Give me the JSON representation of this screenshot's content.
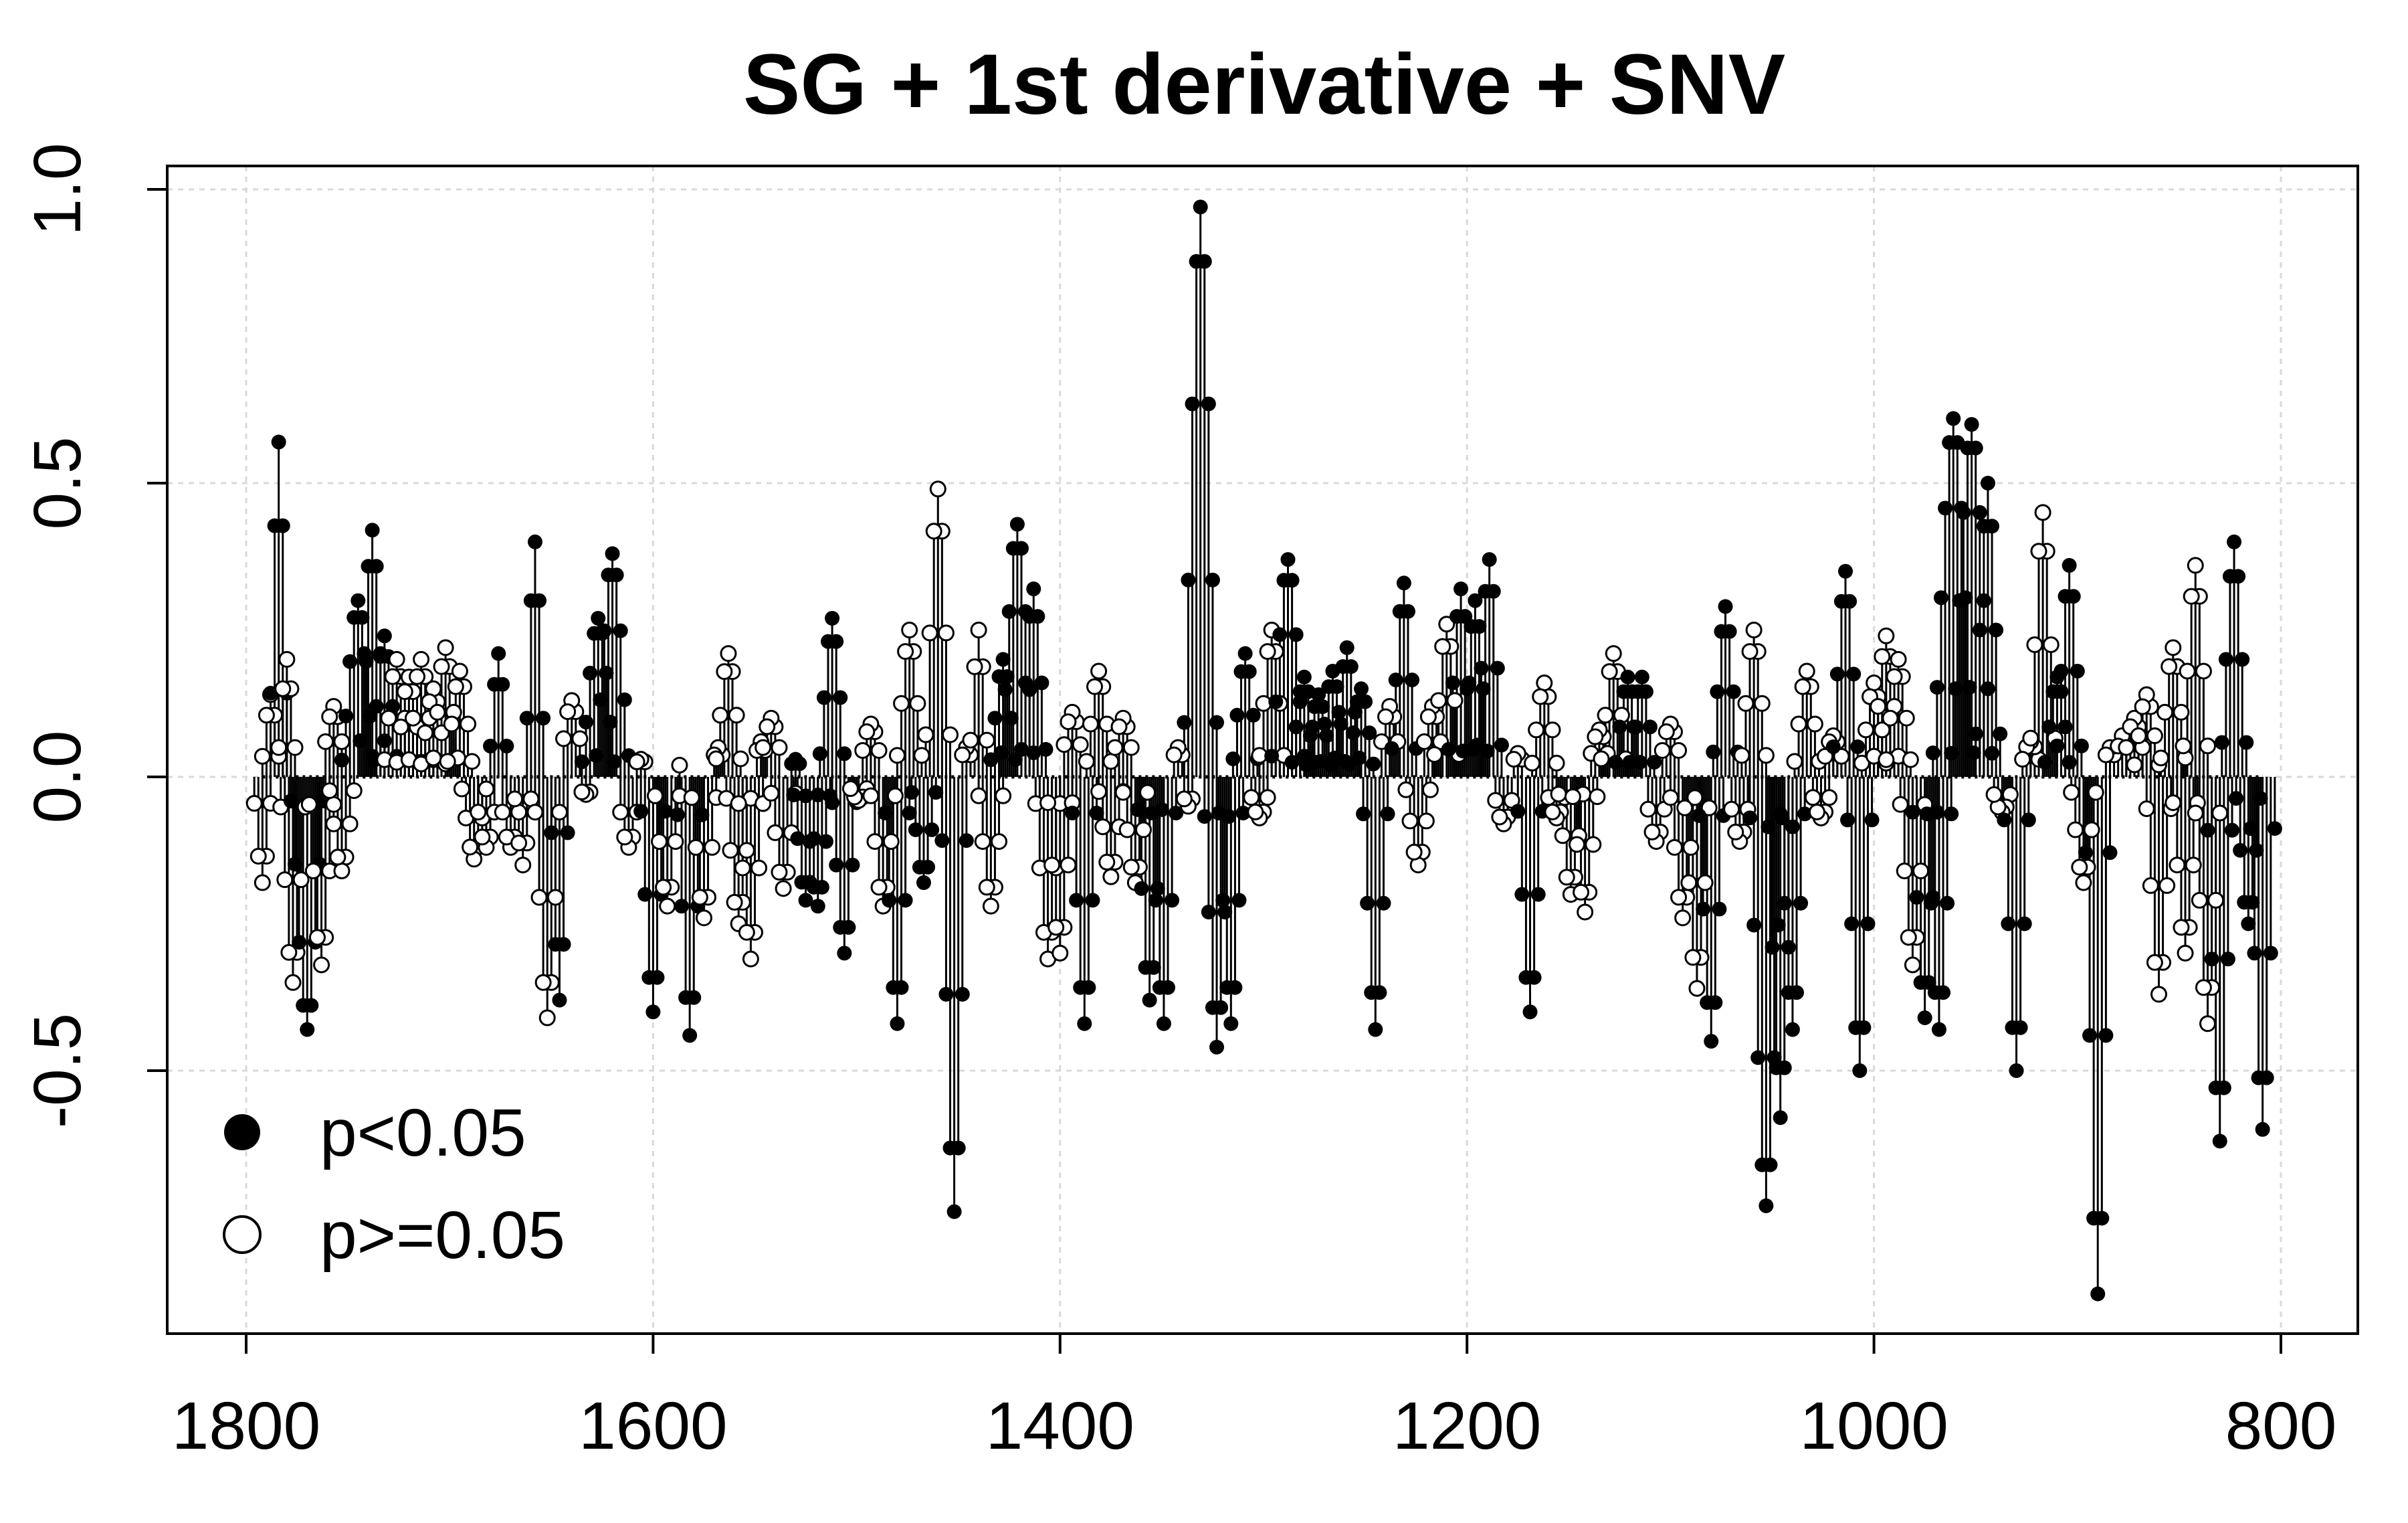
{
  "chart_data": {
    "type": "scatter",
    "title": "SG + 1st derivative + SNV",
    "xlabel": "",
    "ylabel": "",
    "xlim": [
      1835,
      780
    ],
    "ylim": [
      -0.95,
      1.03
    ],
    "x_ticks": [
      1800,
      1600,
      1400,
      1200,
      1000,
      800
    ],
    "x_tick_labels": [
      "1800",
      "1600",
      "1400",
      "1200",
      "1000",
      "800"
    ],
    "y_ticks": [
      -0.5,
      0.0,
      0.5,
      1.0
    ],
    "y_tick_labels": [
      "-0.5",
      "0.0",
      "0.5",
      "1.0"
    ],
    "grid": true,
    "legend": {
      "position": "bottom-left",
      "entries": [
        {
          "label": "p<0.05",
          "marker": "filled-circle"
        },
        {
          "label": "p>=0.05",
          "marker": "open-circle"
        }
      ]
    },
    "style": "vertical stems from zero with circle markers",
    "colors": {
      "marker": "#000000",
      "grid": "#d9d9d9"
    },
    "x_step": 2,
    "peaks": [
      [
        1792,
        -0.18,
        2,
        0
      ],
      [
        1788,
        0.14,
        2,
        0
      ],
      [
        1784,
        0.57,
        2,
        1
      ],
      [
        1780,
        0.2,
        2,
        0
      ],
      [
        1777,
        -0.35,
        3,
        0
      ],
      [
        1770,
        -0.43,
        4,
        1
      ],
      [
        1763,
        -0.32,
        3,
        0
      ],
      [
        1757,
        0.12,
        3,
        0
      ],
      [
        1753,
        -0.16,
        3,
        0
      ],
      [
        1745,
        0.3,
        4,
        1
      ],
      [
        1738,
        0.42,
        3,
        1
      ],
      [
        1732,
        0.24,
        3,
        1
      ],
      [
        1726,
        0.2,
        3,
        0
      ],
      [
        1720,
        0.17,
        3,
        0
      ],
      [
        1714,
        0.2,
        3,
        0
      ],
      [
        1708,
        0.15,
        3,
        0
      ],
      [
        1702,
        0.22,
        3,
        0
      ],
      [
        1695,
        0.18,
        3,
        0
      ],
      [
        1688,
        -0.14,
        3,
        0
      ],
      [
        1682,
        -0.12,
        3,
        0
      ],
      [
        1676,
        0.21,
        2,
        1
      ],
      [
        1670,
        -0.12,
        3,
        0
      ],
      [
        1664,
        -0.15,
        2,
        0
      ],
      [
        1658,
        0.4,
        2,
        1
      ],
      [
        1652,
        -0.41,
        3,
        0
      ],
      [
        1646,
        -0.38,
        2,
        1
      ],
      [
        1640,
        0.13,
        3,
        0
      ],
      [
        1633,
        -0.03,
        3,
        0
      ],
      [
        1627,
        0.27,
        4,
        1
      ],
      [
        1620,
        0.38,
        4,
        1
      ],
      [
        1612,
        -0.12,
        3,
        0
      ],
      [
        1606,
        0.03,
        3,
        0
      ],
      [
        1600,
        -0.4,
        3,
        1
      ],
      [
        1593,
        -0.22,
        3,
        0
      ],
      [
        1587,
        0.02,
        2,
        0
      ],
      [
        1582,
        -0.44,
        3,
        1
      ],
      [
        1575,
        -0.24,
        3,
        0
      ],
      [
        1568,
        0.05,
        2,
        0
      ],
      [
        1563,
        0.21,
        3,
        0
      ],
      [
        1558,
        -0.25,
        3,
        0
      ],
      [
        1552,
        -0.31,
        3,
        0
      ],
      [
        1547,
        0.06,
        2,
        0
      ],
      [
        1542,
        0.1,
        3,
        0
      ],
      [
        1536,
        -0.19,
        3,
        0
      ],
      [
        1530,
        0.03,
        2,
        1
      ],
      [
        1525,
        -0.21,
        3,
        1
      ],
      [
        1519,
        -0.22,
        3,
        1
      ],
      [
        1512,
        0.27,
        3,
        1
      ],
      [
        1506,
        -0.3,
        3,
        1
      ],
      [
        1499,
        -0.04,
        3,
        0
      ],
      [
        1493,
        0.09,
        3,
        0
      ],
      [
        1487,
        -0.22,
        3,
        0
      ],
      [
        1480,
        -0.42,
        3,
        1
      ],
      [
        1474,
        0.25,
        3,
        0
      ],
      [
        1467,
        -0.18,
        3,
        1
      ],
      [
        1460,
        0.49,
        3,
        0
      ],
      [
        1452,
        -0.74,
        3,
        1
      ],
      [
        1446,
        0.05,
        2,
        0
      ],
      [
        1440,
        0.25,
        2,
        0
      ],
      [
        1434,
        -0.22,
        3,
        0
      ],
      [
        1428,
        0.2,
        3,
        1
      ],
      [
        1421,
        0.43,
        4,
        1
      ],
      [
        1413,
        0.32,
        3,
        1
      ],
      [
        1406,
        -0.31,
        3,
        0
      ],
      [
        1400,
        -0.3,
        3,
        0
      ],
      [
        1394,
        0.11,
        3,
        0
      ],
      [
        1388,
        -0.42,
        3,
        1
      ],
      [
        1381,
        0.18,
        3,
        0
      ],
      [
        1375,
        -0.17,
        3,
        0
      ],
      [
        1369,
        0.1,
        3,
        0
      ],
      [
        1363,
        -0.18,
        3,
        0
      ],
      [
        1356,
        -0.38,
        3,
        1
      ],
      [
        1349,
        -0.42,
        3,
        1
      ],
      [
        1342,
        0.05,
        2,
        0
      ],
      [
        1337,
        -0.05,
        2,
        0
      ],
      [
        1331,
        0.97,
        4,
        1
      ],
      [
        1323,
        -0.46,
        3,
        1
      ],
      [
        1316,
        -0.42,
        3,
        1
      ],
      [
        1309,
        0.21,
        3,
        1
      ],
      [
        1302,
        -0.07,
        3,
        0
      ],
      [
        1296,
        0.25,
        3,
        0
      ],
      [
        1288,
        0.37,
        4,
        1
      ],
      [
        1280,
        0.17,
        3,
        1
      ],
      [
        1273,
        0.14,
        3,
        1
      ],
      [
        1266,
        0.18,
        3,
        1
      ],
      [
        1259,
        0.22,
        3,
        1
      ],
      [
        1252,
        0.15,
        3,
        1
      ],
      [
        1245,
        -0.43,
        3,
        1
      ],
      [
        1238,
        0.12,
        3,
        0
      ],
      [
        1231,
        0.33,
        3,
        1
      ],
      [
        1224,
        -0.15,
        3,
        0
      ],
      [
        1217,
        0.12,
        3,
        0
      ],
      [
        1210,
        0.26,
        3,
        0
      ],
      [
        1203,
        0.32,
        3,
        1
      ],
      [
        1196,
        0.3,
        3,
        1
      ],
      [
        1189,
        0.37,
        3,
        1
      ],
      [
        1182,
        -0.08,
        3,
        0
      ],
      [
        1175,
        0.04,
        2,
        0
      ],
      [
        1169,
        -0.4,
        3,
        1
      ],
      [
        1162,
        0.16,
        3,
        0
      ],
      [
        1156,
        -0.07,
        3,
        0
      ],
      [
        1149,
        -0.2,
        3,
        0
      ],
      [
        1142,
        -0.23,
        3,
        0
      ],
      [
        1135,
        0.08,
        3,
        0
      ],
      [
        1128,
        0.21,
        3,
        0
      ],
      [
        1121,
        0.17,
        3,
        1
      ],
      [
        1114,
        0.17,
        3,
        1
      ],
      [
        1107,
        -0.11,
        3,
        0
      ],
      [
        1100,
        0.09,
        3,
        0
      ],
      [
        1094,
        -0.24,
        3,
        0
      ],
      [
        1087,
        -0.36,
        3,
        0
      ],
      [
        1080,
        -0.45,
        3,
        1
      ],
      [
        1073,
        0.29,
        3,
        1
      ],
      [
        1066,
        -0.11,
        3,
        0
      ],
      [
        1059,
        0.25,
        3,
        0
      ],
      [
        1053,
        -0.73,
        4,
        1
      ],
      [
        1046,
        -0.58,
        3,
        1
      ],
      [
        1040,
        -0.43,
        3,
        1
      ],
      [
        1033,
        0.18,
        3,
        0
      ],
      [
        1026,
        -0.07,
        3,
        0
      ],
      [
        1020,
        0.07,
        3,
        0
      ],
      [
        1014,
        0.35,
        3,
        1
      ],
      [
        1007,
        -0.5,
        3,
        1
      ],
      [
        1000,
        0.16,
        3,
        0
      ],
      [
        994,
        0.24,
        3,
        0
      ],
      [
        988,
        0.2,
        3,
        0
      ],
      [
        981,
        -0.32,
        3,
        0
      ],
      [
        975,
        -0.41,
        3,
        1
      ],
      [
        968,
        -0.43,
        3,
        1
      ],
      [
        961,
        0.61,
        5,
        1
      ],
      [
        952,
        0.6,
        5,
        1
      ],
      [
        944,
        0.5,
        3,
        1
      ],
      [
        937,
        -0.06,
        3,
        0
      ],
      [
        930,
        -0.5,
        3,
        1
      ],
      [
        923,
        0.06,
        3,
        0
      ],
      [
        917,
        0.45,
        3,
        0
      ],
      [
        910,
        0.17,
        3,
        1
      ],
      [
        904,
        0.36,
        3,
        1
      ],
      [
        897,
        -0.18,
        3,
        0
      ],
      [
        890,
        -0.88,
        3,
        1
      ],
      [
        884,
        0.05,
        2,
        0
      ],
      [
        878,
        0.07,
        2,
        0
      ],
      [
        872,
        0.1,
        3,
        0
      ],
      [
        866,
        0.14,
        3,
        0
      ],
      [
        860,
        -0.37,
        3,
        0
      ],
      [
        853,
        0.22,
        3,
        0
      ],
      [
        847,
        -0.3,
        3,
        0
      ],
      [
        842,
        0.36,
        3,
        0
      ],
      [
        836,
        -0.42,
        3,
        0
      ],
      [
        830,
        -0.62,
        3,
        1
      ],
      [
        823,
        0.4,
        3,
        1
      ],
      [
        816,
        -0.25,
        3,
        1
      ],
      [
        809,
        -0.6,
        3,
        1
      ]
    ]
  }
}
